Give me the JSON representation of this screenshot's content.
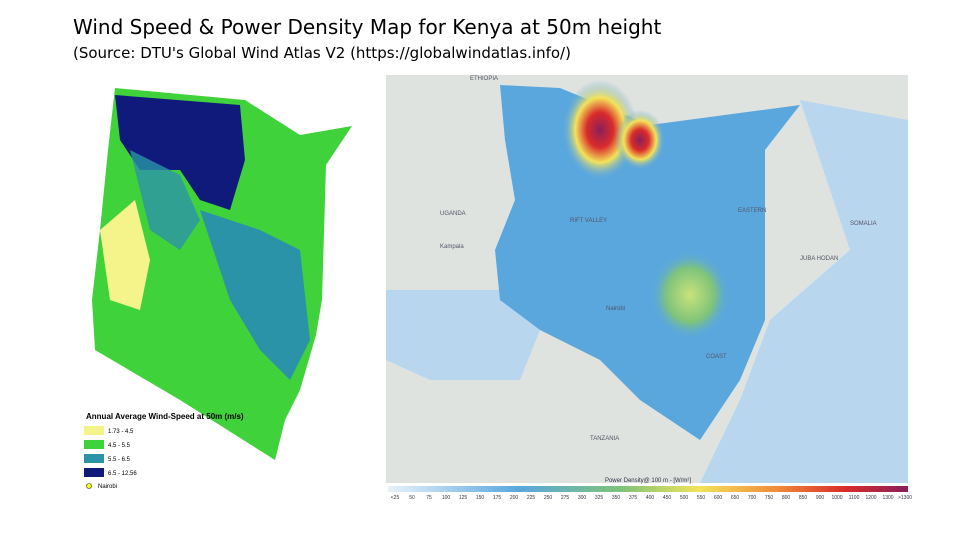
{
  "header": {
    "title": "Wind Speed & Power Density Map for Kenya at 50m height",
    "subtitle": "(Source: DTU's Global Wind Atlas V2 (https://globalwindatlas.info/)"
  },
  "left_map": {
    "legend_title": "Annual Average Wind-Speed at 50m (m/s)",
    "legend_items": [
      {
        "label": "1.73 - 4.5",
        "color": "#f4f48a"
      },
      {
        "label": "4.5 - 5.5",
        "color": "#40d23a"
      },
      {
        "label": "5.5 - 6.5",
        "color": "#2a93a8"
      },
      {
        "label": "6.5 - 12.56",
        "color": "#101a7a"
      }
    ],
    "city": "Nairobi"
  },
  "right_map": {
    "places": [
      "ETHIOPIA",
      "SOMALIA",
      "UGANDA",
      "Kampala",
      "Nairobi",
      "TANZANIA",
      "RIFT VALLEY",
      "COAST",
      "EASTERN",
      "JUBA HODAN"
    ],
    "colorbar_title": "Power Density@ 100 m - [W/m²]",
    "colorbar_labels": [
      "<25",
      "50",
      "75",
      "100",
      "125",
      "150",
      "175",
      "200",
      "225",
      "250",
      "275",
      "300",
      "325",
      "350",
      "375",
      "400",
      "450",
      "500",
      "550",
      "600",
      "650",
      "700",
      "750",
      "800",
      "850",
      "900",
      "1000",
      "1100",
      "1200",
      "1300",
      ">1300"
    ]
  }
}
